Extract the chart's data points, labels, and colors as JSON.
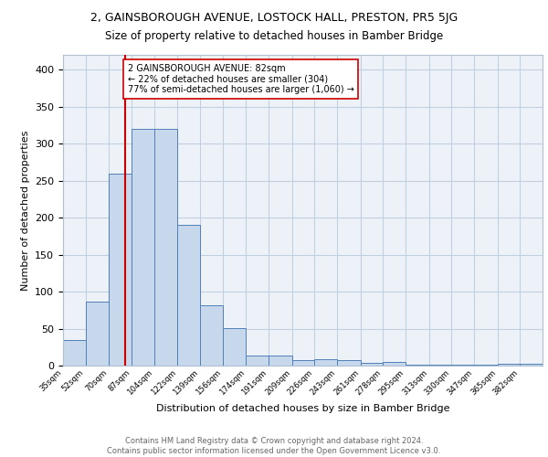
{
  "title_line1": "2, GAINSBOROUGH AVENUE, LOSTOCK HALL, PRESTON, PR5 5JG",
  "title_line2": "Size of property relative to detached houses in Bamber Bridge",
  "xlabel": "Distribution of detached houses by size in Bamber Bridge",
  "ylabel": "Number of detached properties",
  "bar_labels": [
    "35sqm",
    "52sqm",
    "70sqm",
    "87sqm",
    "104sqm",
    "122sqm",
    "139sqm",
    "156sqm",
    "174sqm",
    "191sqm",
    "209sqm",
    "226sqm",
    "243sqm",
    "261sqm",
    "278sqm",
    "295sqm",
    "313sqm",
    "330sqm",
    "347sqm",
    "365sqm",
    "382sqm"
  ],
  "bar_heights": [
    35,
    87,
    260,
    320,
    320,
    190,
    82,
    51,
    13,
    14,
    7,
    9,
    8,
    4,
    5,
    1,
    1,
    1,
    1,
    2,
    3
  ],
  "bar_color": "#c8d8ec",
  "bar_edge_color": "#5080b8",
  "vline_color": "#cc0000",
  "annotation_text": "2 GAINSBOROUGH AVENUE: 82sqm\n← 22% of detached houses are smaller (304)\n77% of semi-detached houses are larger (1,060) →",
  "annotation_box_color": "#ffffff",
  "annotation_box_edge_color": "#cc0000",
  "ylim": [
    0,
    420
  ],
  "yticks": [
    0,
    50,
    100,
    150,
    200,
    250,
    300,
    350,
    400
  ],
  "bg_color": "#edf2f8",
  "footer_text": "Contains HM Land Registry data © Crown copyright and database right 2024.\nContains public sector information licensed under the Open Government Licence v3.0.",
  "bin_edges": [
    35,
    52,
    70,
    87,
    104,
    122,
    139,
    156,
    174,
    191,
    209,
    226,
    243,
    261,
    278,
    295,
    313,
    330,
    347,
    365,
    382,
    399
  ]
}
